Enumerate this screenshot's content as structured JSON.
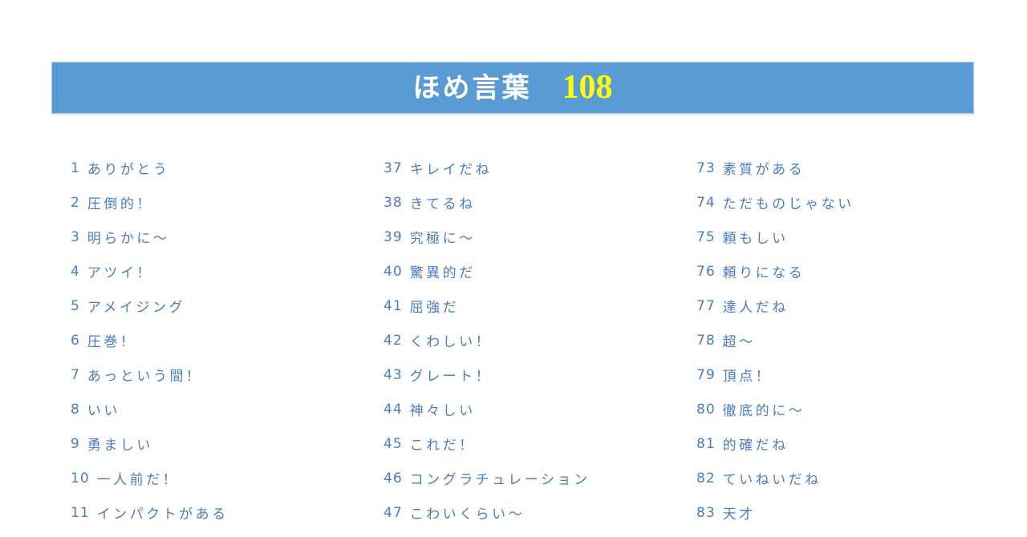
{
  "banner": {
    "title": "ほめ言葉",
    "count": "108",
    "bg_color": "#5B9BD5",
    "title_color": "#FFFFFF",
    "count_color": "#FFFF00"
  },
  "list": {
    "text_color": "#4A7BC8",
    "columns": [
      {
        "items": [
          {
            "n": "1",
            "t": "ありがとう"
          },
          {
            "n": "2",
            "t": "圧倒的！"
          },
          {
            "n": "3",
            "t": "明らかに～"
          },
          {
            "n": "4",
            "t": "アツイ！"
          },
          {
            "n": "5",
            "t": "アメイジング"
          },
          {
            "n": "6",
            "t": "圧巻！"
          },
          {
            "n": "7",
            "t": "あっという間！"
          },
          {
            "n": "8",
            "t": "いい"
          },
          {
            "n": "9",
            "t": "勇ましい"
          },
          {
            "n": "10",
            "t": "一人前だ！"
          },
          {
            "n": "11",
            "t": "インパクトがある"
          }
        ]
      },
      {
        "items": [
          {
            "n": "37",
            "t": "キレイだね"
          },
          {
            "n": "38",
            "t": "きてるね"
          },
          {
            "n": "39",
            "t": "究極に～"
          },
          {
            "n": "40",
            "t": "驚異的だ"
          },
          {
            "n": "41",
            "t": "屈強だ"
          },
          {
            "n": "42",
            "t": "くわしい！"
          },
          {
            "n": "43",
            "t": "グレート！"
          },
          {
            "n": "44",
            "t": "神々しい"
          },
          {
            "n": "45",
            "t": "これだ！"
          },
          {
            "n": "46",
            "t": "コングラチュレーション"
          },
          {
            "n": "47",
            "t": "こわいくらい～"
          }
        ]
      },
      {
        "items": [
          {
            "n": "73",
            "t": "素質がある"
          },
          {
            "n": "74",
            "t": "ただものじゃない"
          },
          {
            "n": "75",
            "t": "頼もしい"
          },
          {
            "n": "76",
            "t": "頼りになる"
          },
          {
            "n": "77",
            "t": "達人だね"
          },
          {
            "n": "78",
            "t": "超～"
          },
          {
            "n": "79",
            "t": "頂点！"
          },
          {
            "n": "80",
            "t": "徹底的に～"
          },
          {
            "n": "81",
            "t": "的確だね"
          },
          {
            "n": "82",
            "t": "ていねいだね"
          },
          {
            "n": "83",
            "t": "天才"
          }
        ]
      }
    ]
  }
}
